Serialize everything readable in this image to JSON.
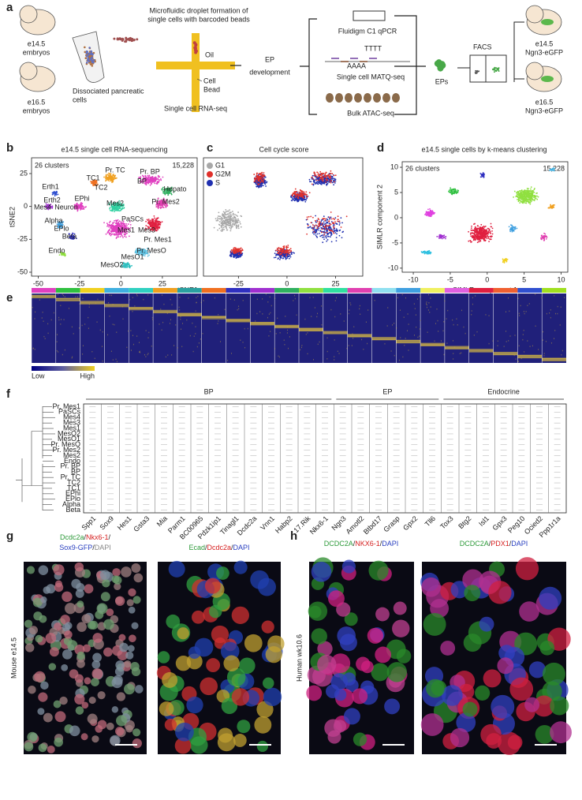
{
  "a": {
    "label": "a",
    "embryo_top": [
      "e14.5",
      "embryos"
    ],
    "embryo_bottom": [
      "e16.5",
      "embryos"
    ],
    "dissociated": [
      "Dissociated pancreatic",
      "cells"
    ],
    "microfluidic": [
      "Microfluidic droplet formation of",
      "single cells with barcoded beads"
    ],
    "oil": "Oil",
    "cell": "Cell",
    "bead": "Bead",
    "rnaseq": "Single cell RNA-seq",
    "ep": [
      "EP",
      "development"
    ],
    "fluidigm": "Fluidigm C1 qPCR",
    "tttt": "TTTT",
    "aaaa": "AAAA",
    "matq": "Single cell MATQ-seq",
    "atac": "Bulk ATAC-seq",
    "eps": "EPs",
    "facs": "FACS",
    "ngn_top": [
      "e14.5",
      "Ngn3-eGFP"
    ],
    "ngn_bottom": [
      "e16.5",
      "Ngn3-eGFP"
    ]
  },
  "b": {
    "label": "b",
    "title": "e14.5 single cell RNA-sequencing",
    "clusters": "26 clusters",
    "count": "15,228",
    "xlabel": "tSNE1",
    "ylabel": "tSNE2",
    "xlim": [
      -54,
      46
    ],
    "ylim": [
      -53,
      37
    ],
    "xticks": [
      -50,
      -25,
      0,
      25
    ],
    "yticks": [
      25,
      0,
      -25,
      -50
    ],
    "cluster_labels": [
      "Pr. TC",
      "Pr. BP",
      "TC1",
      "BP",
      "TC2",
      "Hepato",
      "Erth1",
      "Erth2",
      "Mes4",
      "Neuron",
      "EPhi",
      "Mes2",
      "Pr. Mes2",
      "PaSCs",
      "Alpha",
      "EPlo",
      "Beta",
      "Mes1",
      "Mes3",
      "Pr. Mes1",
      "Endo",
      "Pr. MesO",
      "MesO1",
      "MesO2"
    ]
  },
  "c": {
    "label": "c",
    "title": "Cell cycle score",
    "xlim": [
      -43,
      39
    ],
    "xticks": [
      -25,
      0,
      25
    ],
    "legend": [
      {
        "name": "G1",
        "color": "#a8a8a8"
      },
      {
        "name": "G2M",
        "color": "#e0302a"
      },
      {
        "name": "S",
        "color": "#2030b0"
      }
    ]
  },
  "d": {
    "label": "d",
    "title": "e14.5 single cells by k-means clustering",
    "clusters": "26 clusters",
    "count": "15,228",
    "xlabel": "SIMLR component 1",
    "ylabel": "SIMLR component 2",
    "xlim": [
      -11.5,
      10.9
    ],
    "ylim": [
      -10.8,
      11.1
    ],
    "xticks": [
      -10,
      -5,
      0,
      5,
      10
    ],
    "yticks": [
      10,
      5,
      0,
      -5,
      -10
    ]
  },
  "e": {
    "label": "e",
    "low": "Low",
    "high": "High",
    "cluster_colors": [
      "#e040c0",
      "#30c040",
      "#f0d020",
      "#40b0e0",
      "#30d0c0",
      "#f0a020",
      "#2aa0a0",
      "#f07020",
      "#3030c0",
      "#a030d0",
      "#30b060",
      "#90e040",
      "#30e0a0",
      "#e040b0",
      "#90e0f0",
      "#40a0e0",
      "#f0f060",
      "#e060e0",
      "#e02040",
      "#f06030",
      "#3050d0",
      "#a0e020"
    ]
  },
  "f": {
    "label": "f",
    "groups": [
      "BP",
      "EP",
      "Endocrine"
    ],
    "rows": [
      "Pr. Mes1",
      "PaSCs",
      "Mes4",
      "Mes3",
      "Mes1",
      "MesO2",
      "MesO1",
      "Pr. MesO",
      "Pr. Mes2",
      "Mes2",
      "Endo",
      "Pr. BP",
      "BP",
      "Pr. TC",
      "TC2",
      "TC1",
      "EPhi",
      "EPlo",
      "Alpha",
      "Beta"
    ],
    "genes": [
      "Spp1",
      "Sox9",
      "Hes1",
      "Gsta3",
      "Mia",
      "Parm1",
      "BC00965",
      "Pdzk1ip1",
      "Tinagl1",
      "Dcdc2a",
      "Vnn1",
      "Habp2",
      "17.Rik",
      "Nkx6-1",
      "Ngn3",
      "Amotl2",
      "Btbd17",
      "Grasp",
      "Gpx2",
      "Tll6",
      "Tox3",
      "Btg2",
      "Isl1",
      "Gpx3",
      "Peg10",
      "Ocied2",
      "Ppp1r1a"
    ]
  },
  "g": {
    "label": "g",
    "side": "Mouse e14.5",
    "stain_left_1": [
      {
        "text": "Dcdc2a",
        "color": "#2e9a3a"
      },
      {
        "text": "/",
        "color": "#222222"
      },
      {
        "text": "Nkx6-1",
        "color": "#d62020"
      },
      {
        "text": "/",
        "color": "#222222"
      }
    ],
    "stain_left_2": [
      {
        "text": "Sox9-GFP",
        "color": "#2a40c0"
      },
      {
        "text": "/",
        "color": "#222222"
      },
      {
        "text": "DAPI",
        "color": "#888888"
      }
    ],
    "stain_right": [
      {
        "text": "Ecad",
        "color": "#2e9a3a"
      },
      {
        "text": "/",
        "color": "#222222"
      },
      {
        "text": "Dcdc2a",
        "color": "#d62020"
      },
      {
        "text": "/",
        "color": "#222222"
      },
      {
        "text": "DAPI",
        "color": "#2a40c0"
      }
    ]
  },
  "h": {
    "label": "h",
    "side": "Human wk10.6",
    "stain_left": [
      {
        "text": "DCDC2A",
        "color": "#2e9a3a"
      },
      {
        "text": "/",
        "color": "#222222"
      },
      {
        "text": "NKX6-1",
        "color": "#d62020"
      },
      {
        "text": "/",
        "color": "#222222"
      },
      {
        "text": "DAPI",
        "color": "#2a40c0"
      }
    ],
    "stain_right": [
      {
        "text": "DCDC2A",
        "color": "#2e9a3a"
      },
      {
        "text": "/",
        "color": "#222222"
      },
      {
        "text": "PDX1",
        "color": "#d62020"
      },
      {
        "text": "/",
        "color": "#222222"
      },
      {
        "text": "DAPI",
        "color": "#2a40c0"
      }
    ]
  }
}
